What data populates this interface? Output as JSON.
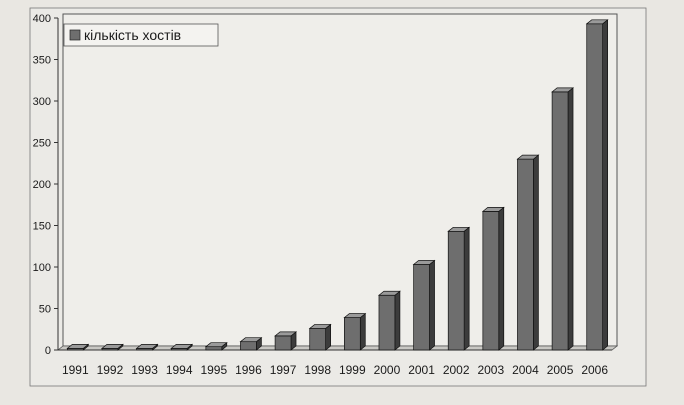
{
  "chart_data": {
    "type": "bar",
    "title": "",
    "xlabel": "",
    "ylabel": "",
    "categories": [
      "1991",
      "1992",
      "1993",
      "1994",
      "1995",
      "1996",
      "1997",
      "1998",
      "1999",
      "2000",
      "2001",
      "2002",
      "2003",
      "2004",
      "2005",
      "2006"
    ],
    "series": [
      {
        "name": "кількість хостів",
        "values": [
          2,
          2,
          2,
          2,
          4,
          10,
          17,
          26,
          39,
          66,
          103,
          143,
          167,
          230,
          311,
          393
        ]
      }
    ],
    "ylim": [
      0,
      400
    ],
    "yticks": [
      0,
      50,
      100,
      150,
      200,
      250,
      300,
      350,
      400
    ],
    "grid": false,
    "legend_position": "top-left",
    "colors": {
      "bar_front": "#6e6e6e",
      "bar_side": "#3c3c3c",
      "bar_top": "#9a9a9a",
      "plot_background": "#ebeae6",
      "page_background": "#e9e7e2"
    }
  }
}
